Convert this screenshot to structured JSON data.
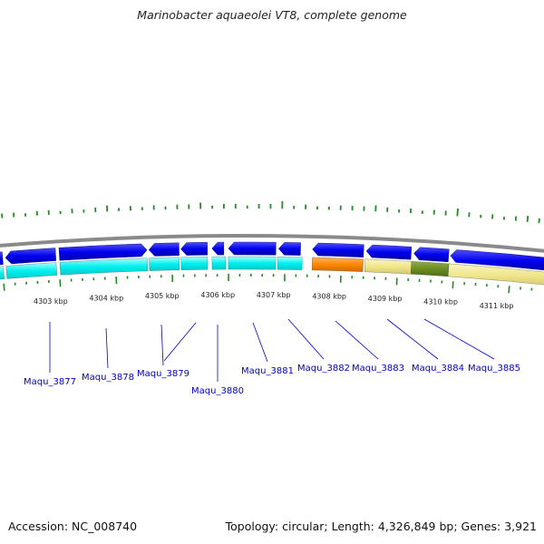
{
  "title": "Marinobacter aquaeolei VT8, complete genome",
  "footer": {
    "accession": "Accession: NC_008740",
    "summary": "Topology: circular; Length: 4,326,849 bp; Genes: 3,921"
  },
  "colors": {
    "cds_strand": "#0000ee",
    "rna_strand": "#00ffff",
    "highlight_orange": "#ff8800",
    "highlight_khaki": "#f0e68c",
    "highlight_olive": "#6b8e23",
    "gc_skew": "#228b22",
    "backbone": "#888888",
    "label": "#0000cc"
  },
  "scale": {
    "tick_labels": [
      "4303 kbp",
      "4304 kbp",
      "4305 kbp",
      "4306 kbp",
      "4307 kbp",
      "4308 kbp",
      "4309 kbp",
      "4310 kbp",
      "4311 kbp"
    ]
  },
  "genes": [
    {
      "label": "Maqu_3877"
    },
    {
      "label": "Maqu_3878"
    },
    {
      "label": "Maqu_3879"
    },
    {
      "label": "Maqu_3880"
    },
    {
      "label": "Maqu_3881"
    },
    {
      "label": "Maqu_3882"
    },
    {
      "label": "Maqu_3883"
    },
    {
      "label": "Maqu_3884"
    },
    {
      "label": "Maqu_3885"
    }
  ]
}
